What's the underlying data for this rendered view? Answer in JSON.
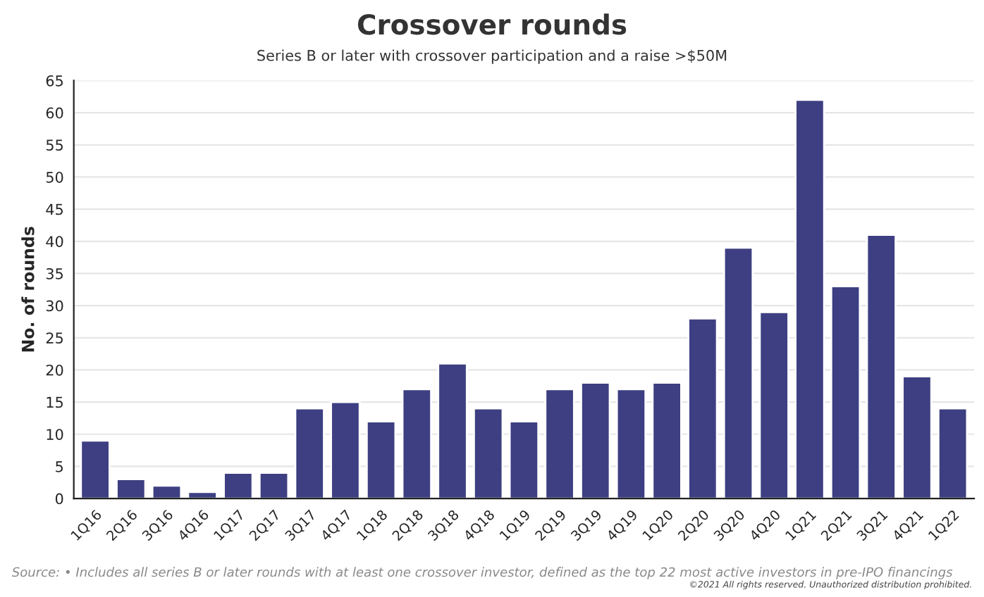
{
  "chart_data": {
    "type": "bar",
    "title": "Crossover rounds",
    "subtitle": "Series B or later with crossover participation and a raise >$50M",
    "ylabel": "No. of rounds",
    "categories": [
      "1Q16",
      "2Q16",
      "3Q16",
      "4Q16",
      "1Q17",
      "2Q17",
      "3Q17",
      "4Q17",
      "1Q18",
      "2Q18",
      "3Q18",
      "4Q18",
      "1Q19",
      "2Q19",
      "3Q19",
      "4Q19",
      "1Q20",
      "2Q20",
      "3Q20",
      "4Q20",
      "1Q21",
      "2Q21",
      "3Q21",
      "4Q21",
      "1Q22"
    ],
    "values": [
      9,
      3,
      2,
      1,
      4,
      4,
      14,
      15,
      12,
      17,
      21,
      14,
      12,
      17,
      18,
      17,
      18,
      28,
      39,
      29,
      62,
      33,
      41,
      19,
      14
    ],
    "color": "#3d3f82",
    "ylim": [
      0,
      65
    ],
    "yticks": [
      0,
      5,
      10,
      15,
      20,
      25,
      30,
      35,
      40,
      45,
      50,
      55,
      60,
      65
    ],
    "grid": "y",
    "annotations": [
      "Source: • Includes all series B or later rounds with at least one crossover investor, defined as the top 22 most active investors in pre-IPO financings",
      "©2021 All rights reserved. Unauthorized distribution prohibited."
    ]
  }
}
